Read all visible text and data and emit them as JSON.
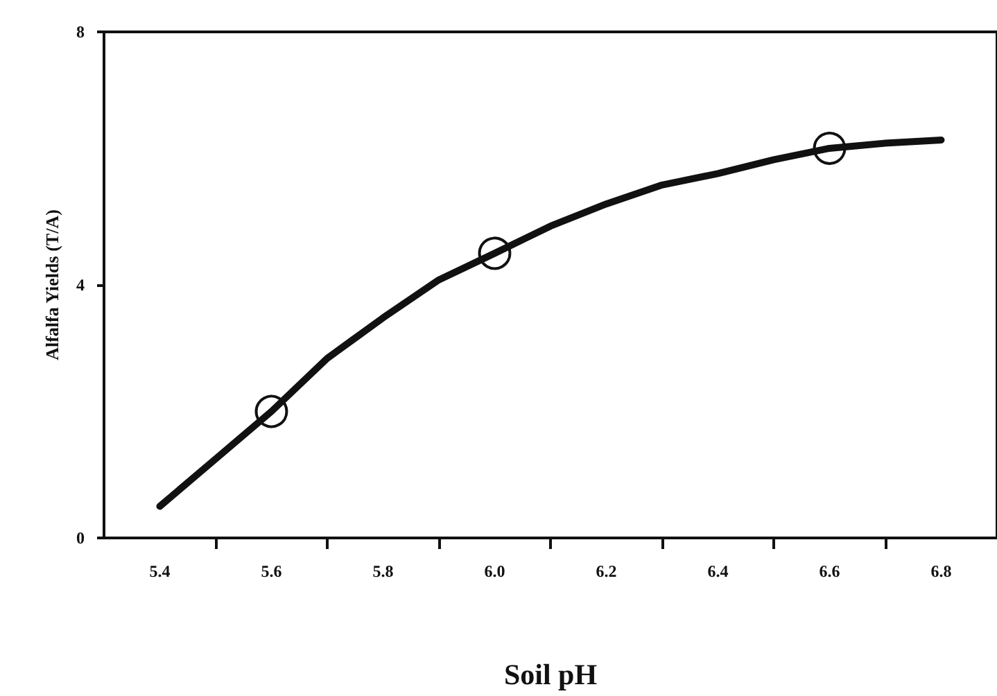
{
  "chart_data": {
    "type": "line",
    "xlabel": "Soil pH",
    "ylabel": "Alfalfa Yields (T/A)",
    "x": [
      5.4,
      5.5,
      5.6,
      5.7,
      5.8,
      5.9,
      6.0,
      6.1,
      6.2,
      6.3,
      6.4,
      6.5,
      6.6,
      6.7,
      6.8
    ],
    "series": [
      {
        "color": "#111111",
        "values": [
          0.5,
          1.25,
          2.0,
          2.84,
          3.48,
          4.08,
          4.5,
          4.93,
          5.28,
          5.58,
          5.76,
          5.98,
          6.16,
          6.24,
          6.29
        ],
        "marker": "none"
      },
      {
        "type": "scatter",
        "color": "#111111",
        "x": [
          5.6,
          6.0,
          6.6
        ],
        "values": [
          2.0,
          4.5,
          6.16
        ],
        "marker": "circle"
      }
    ],
    "xlim": [
      5.3,
      6.9
    ],
    "xticks": [
      5.4,
      {
        "value": 5.5,
        "label": null
      },
      5.6,
      {
        "value": 5.7,
        "label": null
      },
      5.8,
      {
        "value": 5.9,
        "label": null
      },
      {
        "value": 6.0,
        "label": "6.0"
      },
      {
        "value": 6.1,
        "label": null
      },
      6.2,
      {
        "value": 6.3,
        "label": null
      },
      6.4,
      {
        "value": 6.5,
        "label": null
      },
      6.6,
      {
        "value": 6.7,
        "label": null
      },
      6.8
    ],
    "ylim": [
      0,
      8
    ],
    "yticks": [
      0,
      4,
      8
    ],
    "grid": false
  }
}
